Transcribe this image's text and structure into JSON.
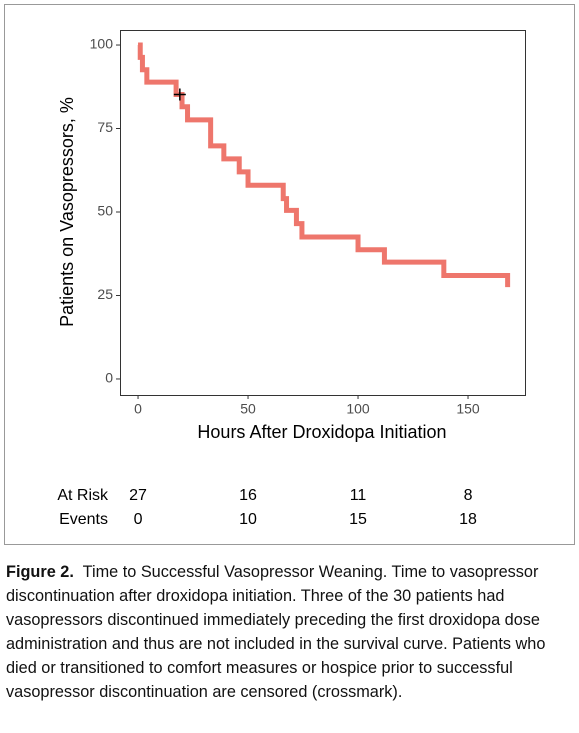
{
  "chart_data": {
    "type": "step",
    "xlabel": "Hours After Droxidopa Initiation",
    "ylabel": "Patients on Vasopressors, %",
    "x": [
      0,
      1,
      2,
      4,
      17.3,
      20,
      22.5,
      33,
      39,
      46,
      50,
      66,
      67.5,
      72,
      74.5,
      100,
      112,
      139,
      168
    ],
    "series": [
      {
        "color": "#ee766c",
        "values": [
          100,
          96.3,
          92.6,
          88.9,
          85.2,
          81.5,
          77.6,
          69.8,
          65.9,
          62,
          58,
          54,
          50.5,
          46.5,
          42.5,
          38.7,
          35,
          31,
          27.5
        ]
      }
    ],
    "censored": {
      "x": [
        19
      ],
      "y": [
        85.2
      ]
    },
    "xlim": [
      -8.2,
      175.9
    ],
    "ylim": [
      -4.8,
      104.5
    ],
    "xticks": [
      0,
      50,
      100,
      150
    ],
    "yticks": [
      0,
      25,
      50,
      75,
      100
    ],
    "risk_table": {
      "rows": [
        {
          "label": "At Risk",
          "values": [
            27,
            16,
            11,
            8
          ]
        },
        {
          "label": "Events",
          "values": [
            0,
            10,
            15,
            18
          ]
        }
      ]
    }
  },
  "caption": {
    "label": "Figure 2.",
    "text": "Time to Successful Vasopressor Weaning. Time to vasopressor discontinuation after droxidopa initiation. Three of the 30 patients had vasopressors discontinued immediately preceding the first droxidopa dose administration and thus are not included in the survival curve. Patients who died or transitioned to comfort measures or hospice prior to successful vasopressor discontinuation are censored (crossmark)."
  }
}
